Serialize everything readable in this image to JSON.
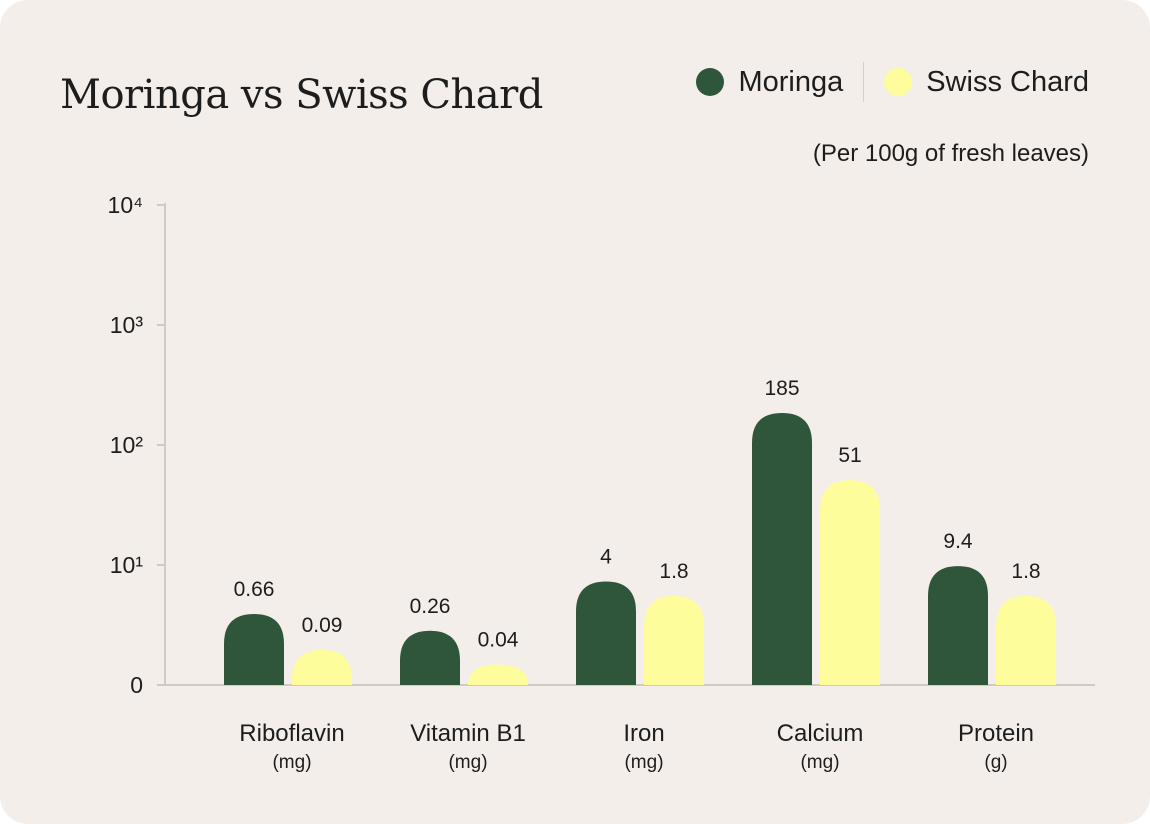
{
  "colors": {
    "background": "#f3eeea",
    "moringa": "#2f563b",
    "swiss_chard": "#fdfd9c",
    "axis": "#cfcac4"
  },
  "chart_data": {
    "type": "bar",
    "title": "Moringa vs Swiss Chard",
    "subtitle": "(Per 100g of fresh leaves)",
    "yscale": "log",
    "ylim": [
      0,
      10000
    ],
    "yticks": [
      {
        "value": 0,
        "label": "0"
      },
      {
        "value": 10,
        "label": "10¹"
      },
      {
        "value": 100,
        "label": "10²"
      },
      {
        "value": 1000,
        "label": "10³"
      },
      {
        "value": 10000,
        "label": "10⁴"
      }
    ],
    "categories": [
      {
        "name": "Riboflavin",
        "unit": "(mg)"
      },
      {
        "name": "Vitamin B1",
        "unit": "(mg)"
      },
      {
        "name": "Iron",
        "unit": "(mg)"
      },
      {
        "name": "Calcium",
        "unit": "(mg)"
      },
      {
        "name": "Protein",
        "unit": "(g)"
      }
    ],
    "series": [
      {
        "name": "Moringa",
        "values": [
          0.66,
          0.26,
          4,
          185,
          9.4
        ],
        "labels": [
          "0.66",
          "0.26",
          "4",
          "185",
          "9.4"
        ]
      },
      {
        "name": "Swiss Chard",
        "values": [
          0.09,
          0.04,
          1.8,
          51,
          1.8
        ],
        "labels": [
          "0.09",
          "0.04",
          "1.8",
          "51",
          "1.8"
        ]
      }
    ],
    "legend_position": "top-right"
  }
}
